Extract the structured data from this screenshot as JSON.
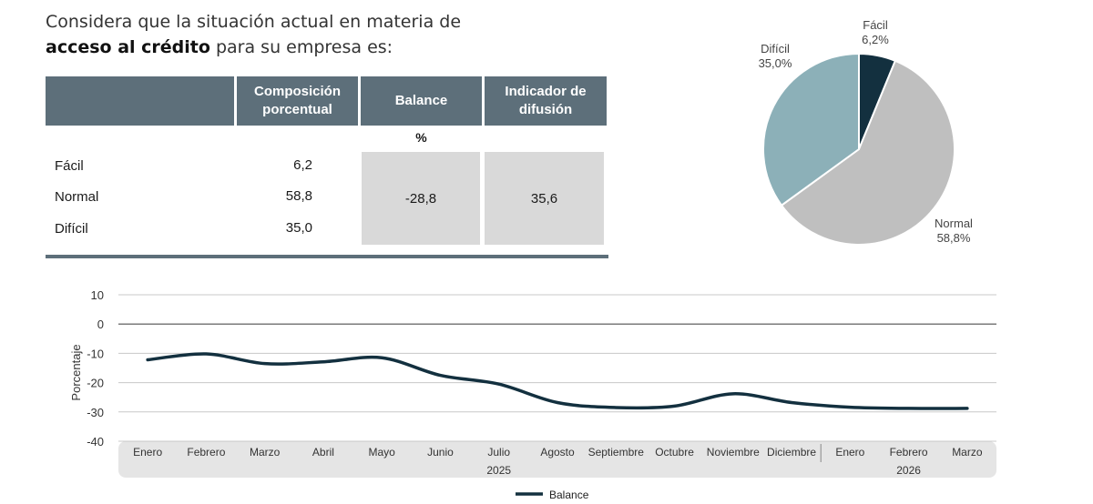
{
  "title": {
    "line1": "Considera que la situación actual en materia de",
    "bold": "acceso al crédito",
    "rest": " para su empresa es:"
  },
  "table": {
    "headers": [
      "",
      "Composición porcentual",
      "Balance",
      "Indicador de difusión"
    ],
    "unit": "%",
    "rows": [
      {
        "label": "Fácil",
        "value": "6,2"
      },
      {
        "label": "Normal",
        "value": "58,8"
      },
      {
        "label": "Difícil",
        "value": "35,0"
      }
    ],
    "balance": "-28,8",
    "diffusion": "35,6"
  },
  "pie": {
    "slices": [
      {
        "label": "Fácil",
        "value_label": "6,2%",
        "value": 6.2,
        "color": "#13303f"
      },
      {
        "label": "Normal",
        "value_label": "58,8%",
        "value": 58.8,
        "color": "#bfbfbf"
      },
      {
        "label": "Difícil",
        "value_label": "35,0%",
        "value": 35.0,
        "color": "#8cb0b8"
      }
    ]
  },
  "chart_data": {
    "type": "line",
    "ylabel": "Porcentaje",
    "ylim": [
      -40,
      10
    ],
    "yticks": [
      10,
      0,
      -10,
      -20,
      -30,
      -40
    ],
    "categories": [
      "Enero",
      "Febrero",
      "Marzo",
      "Abril",
      "Mayo",
      "Junio",
      "Julio",
      "Agosto",
      "Septiembre",
      "Octubre",
      "Noviembre",
      "Diciembre",
      "Enero",
      "Febrero",
      "Marzo"
    ],
    "year_labels": [
      {
        "label": "2025",
        "at_index": 6
      },
      {
        "label": "2026",
        "at_index": 13
      }
    ],
    "series": [
      {
        "name": "Balance",
        "color": "#13303f",
        "values": [
          -12.2,
          -10.2,
          -13.5,
          -12.9,
          -11.5,
          -17.5,
          -20.5,
          -26.8,
          -28.5,
          -28.0,
          -23.8,
          -26.8,
          -28.4,
          -28.8,
          -28.8
        ]
      }
    ],
    "legend": "bottom-center",
    "grid": true
  }
}
